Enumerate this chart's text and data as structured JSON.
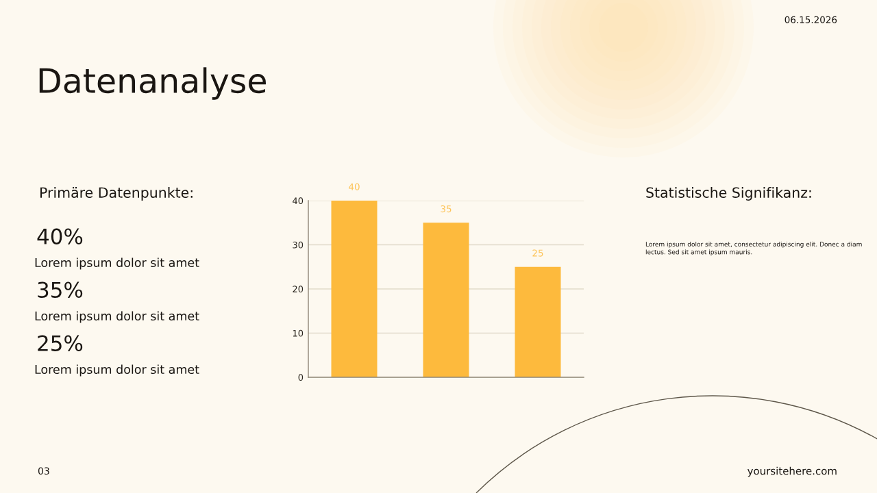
{
  "chart_data": [
    {
      "type": "other",
      "title": "Datenanalyse",
      "annotations": [
        "06.15.2026",
        "03",
        "yoursitehere.com"
      ]
    },
    {
      "type": "other",
      "title": "Primäre Datenpunkte:",
      "annotations": [
        "40%",
        "Lorem ipsum dolor sit amet",
        "35%",
        "Lorem ipsum dolor sit amet",
        "25%",
        "Lorem ipsum dolor sit amet"
      ]
    },
    {
      "type": "bar",
      "categories": [
        null,
        null,
        null
      ],
      "values": [
        40,
        35,
        25
      ],
      "color": "#FDBA3D",
      "ylim": [
        0,
        40
      ],
      "yticks": [
        0,
        10,
        20,
        30,
        40
      ],
      "grid": "y",
      "data_labels": true,
      "tick_labels": "y"
    },
    {
      "type": "other",
      "title": "Statistische Signifikanz:",
      "annotations": [
        "Lorem ipsum dolor sit amet, consectetur adipiscing elit. Donec a diam lectus. Sed sit amet ipsum mauris."
      ]
    }
  ]
}
